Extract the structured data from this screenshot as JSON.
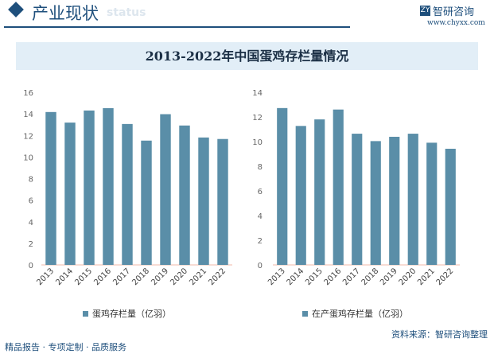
{
  "header": {
    "title": "产业现状",
    "subtitle": "status",
    "logo": "智研咨询",
    "logo_mark": "ZY",
    "url": "www.chyxx.com"
  },
  "banner": "2013-2022年中国蛋鸡存栏量情况",
  "footer": {
    "left": "精品报告 · 专项定制 · 品质服务",
    "source": "资料来源：智研咨询整理"
  },
  "colors": {
    "bar": "#5a8ea8",
    "axis": "#f0b8a8",
    "accent": "#1e4f7c"
  },
  "chart_data": [
    {
      "type": "bar",
      "title": "",
      "categories": [
        "2013",
        "2014",
        "2015",
        "2016",
        "2017",
        "2018",
        "2019",
        "2020",
        "2021",
        "2022"
      ],
      "series": [
        {
          "name": "蛋鸡存栏量（亿羽）",
          "values": [
            14.17,
            13.19,
            14.31,
            14.53,
            13.06,
            11.52,
            13.97,
            12.92,
            11.81,
            11.67
          ]
        }
      ],
      "ylim": [
        0,
        16
      ],
      "yticks": [
        0,
        2,
        4,
        6,
        8,
        10,
        12,
        14,
        16
      ],
      "legend": "bottom"
    },
    {
      "type": "bar",
      "title": "",
      "categories": [
        "2013",
        "2014",
        "2015",
        "2016",
        "2017",
        "2018",
        "2019",
        "2020",
        "2021",
        "2022"
      ],
      "series": [
        {
          "name": "在产蛋鸡存栏量（亿羽）",
          "values": [
            12.72,
            11.27,
            11.8,
            12.6,
            10.64,
            10.04,
            10.39,
            10.64,
            9.91,
            9.42
          ]
        }
      ],
      "ylim": [
        0,
        14
      ],
      "yticks": [
        0,
        2,
        4,
        6,
        8,
        10,
        12,
        14
      ],
      "legend": "bottom"
    }
  ]
}
